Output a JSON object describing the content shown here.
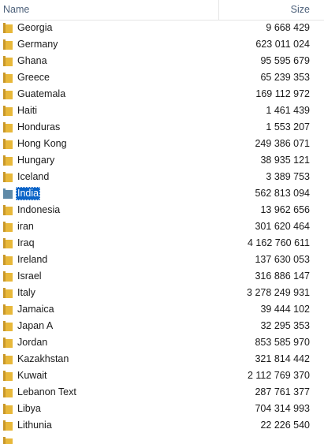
{
  "columns": {
    "name": "Name",
    "size": "Size"
  },
  "colors": {
    "folder": "#e8b83a",
    "folder_dark": "#c9982a",
    "folder_selected": "#5f8aa8",
    "selection": "#0a64c8",
    "header_text": "#4c607a"
  },
  "rows": [
    {
      "name": "Georgia",
      "size": "9 668 429",
      "icon": "folder-icon"
    },
    {
      "name": "Germany",
      "size": "623 011 024",
      "icon": "folder-icon"
    },
    {
      "name": "Ghana",
      "size": "95 595 679",
      "icon": "folder-icon"
    },
    {
      "name": "Greece",
      "size": "65 239 353",
      "icon": "folder-icon"
    },
    {
      "name": "Guatemala",
      "size": "169 112 972",
      "icon": "folder-icon"
    },
    {
      "name": "Haiti",
      "size": "1 461 439",
      "icon": "folder-icon"
    },
    {
      "name": "Honduras",
      "size": "1 553 207",
      "icon": "folder-icon"
    },
    {
      "name": "Hong Kong",
      "size": "249 386 071",
      "icon": "folder-icon"
    },
    {
      "name": "Hungary",
      "size": "38 935 121",
      "icon": "folder-icon"
    },
    {
      "name": "Iceland",
      "size": "3 389 753",
      "icon": "folder-icon"
    },
    {
      "name": "India",
      "size": "562 813 094",
      "icon": "folder-icon",
      "selected": true
    },
    {
      "name": "Indonesia",
      "size": "13 962 656",
      "icon": "folder-icon"
    },
    {
      "name": "iran",
      "size": "301 620 464",
      "icon": "folder-icon"
    },
    {
      "name": "Iraq",
      "size": "4 162 760 611",
      "icon": "folder-icon"
    },
    {
      "name": "Ireland",
      "size": "137 630 053",
      "icon": "folder-icon"
    },
    {
      "name": "Israel",
      "size": "316 886 147",
      "icon": "folder-icon"
    },
    {
      "name": "Italy",
      "size": "3 278 249 931",
      "icon": "folder-icon"
    },
    {
      "name": "Jamaica",
      "size": "39 444 102",
      "icon": "folder-icon"
    },
    {
      "name": "Japan A",
      "size": "32 295 353",
      "icon": "folder-icon"
    },
    {
      "name": "Jordan",
      "size": "853 585 970",
      "icon": "folder-icon"
    },
    {
      "name": "Kazakhstan",
      "size": "321 814 442",
      "icon": "folder-icon"
    },
    {
      "name": "Kuwait",
      "size": "2 112 769 370",
      "icon": "folder-icon"
    },
    {
      "name": "Lebanon Text",
      "size": "287 761 377",
      "icon": "folder-icon"
    },
    {
      "name": "Libya",
      "size": "704 314 993",
      "icon": "folder-icon"
    },
    {
      "name": "Lithunia",
      "size": "22 226 540",
      "icon": "folder-icon"
    }
  ]
}
